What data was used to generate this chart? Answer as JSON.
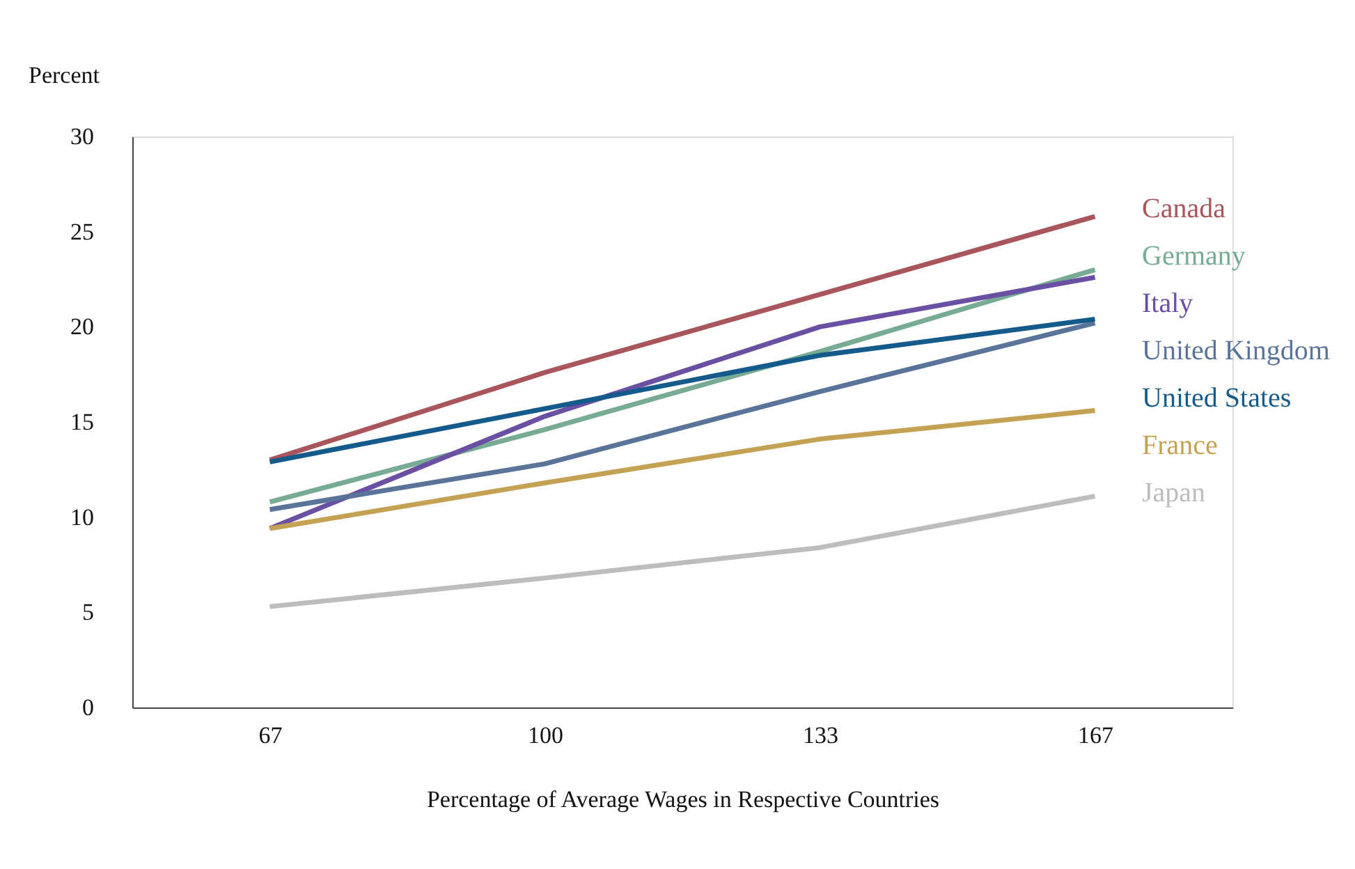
{
  "chart_data": {
    "type": "line",
    "ylabel": "Percent",
    "xlabel": "Percentage of Average Wages in Respective Countries",
    "categories": [
      "67",
      "100",
      "133",
      "167"
    ],
    "ylim": [
      0,
      30
    ],
    "yticks": [
      0,
      5,
      10,
      15,
      20,
      25,
      30
    ],
    "grid": false,
    "marker": "none",
    "line_style": "solid",
    "series": [
      {
        "name": "Canada",
        "color": "#a8565b",
        "values": [
          13.0,
          17.6,
          21.7,
          25.8
        ]
      },
      {
        "name": "Germany",
        "color": "#77ab94",
        "values": [
          10.8,
          14.6,
          18.7,
          23.0
        ]
      },
      {
        "name": "Italy",
        "color": "#6a4fa3",
        "values": [
          9.4,
          15.3,
          20.0,
          22.6
        ]
      },
      {
        "name": "United Kingdom",
        "color": "#5a7398",
        "values": [
          10.4,
          12.8,
          16.6,
          20.2
        ]
      },
      {
        "name": "United States",
        "color": "#145a8a",
        "values": [
          12.9,
          15.7,
          18.5,
          20.4
        ]
      },
      {
        "name": "France",
        "color": "#c4a254",
        "values": [
          9.4,
          11.8,
          14.1,
          15.6
        ]
      },
      {
        "name": "Japan",
        "color": "#bdbdbd",
        "values": [
          5.3,
          6.8,
          8.4,
          11.1
        ]
      }
    ]
  }
}
